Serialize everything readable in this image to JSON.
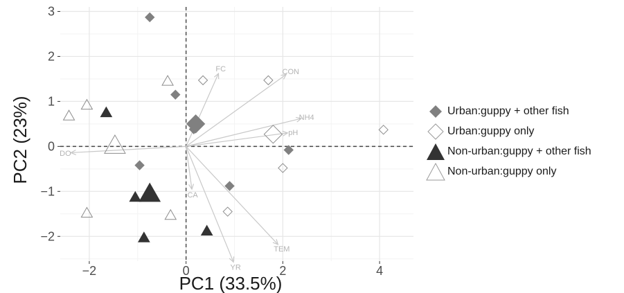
{
  "chart_data": {
    "type": "scatter",
    "xlabel": "PC1 (33.5%)",
    "ylabel": "PC2 (23%)",
    "xlim": [
      -2.6,
      4.7
    ],
    "ylim": [
      -2.55,
      3.1
    ],
    "x_ticks": [
      -2,
      0,
      2,
      4
    ],
    "y_ticks": [
      -2,
      -1,
      0,
      1,
      2,
      3
    ],
    "x_tick_labels": [
      "−2",
      "0",
      "2",
      "4"
    ],
    "y_tick_labels": [
      "−2",
      "−1",
      "0",
      "1",
      "2",
      "3"
    ],
    "grid": true,
    "reference_lines": {
      "x": 0,
      "y": 0,
      "style": "dashed"
    },
    "legend_position": "right",
    "series": [
      {
        "name": "Urban:guppy + other fish",
        "marker": "diamond-filled",
        "color": "#808080",
        "points": [
          {
            "x": -0.75,
            "y": 2.87
          },
          {
            "x": -0.22,
            "y": 1.15
          },
          {
            "x": 0.16,
            "y": 0.38
          },
          {
            "x": -0.96,
            "y": -0.42
          },
          {
            "x": 0.9,
            "y": -0.88
          },
          {
            "x": 2.12,
            "y": -0.08
          }
        ],
        "centroid": {
          "x": 0.2,
          "y": 0.5
        }
      },
      {
        "name": "Urban:guppy only",
        "marker": "diamond-open",
        "color": "#808080",
        "points": [
          {
            "x": 0.35,
            "y": 1.47
          },
          {
            "x": 1.7,
            "y": 1.47
          },
          {
            "x": 2.0,
            "y": -0.48
          },
          {
            "x": 0.86,
            "y": -1.45
          },
          {
            "x": 4.08,
            "y": 0.37
          }
        ],
        "centroid": {
          "x": 1.8,
          "y": 0.27
        }
      },
      {
        "name": "Non-urban:guppy + other fish",
        "marker": "triangle-filled",
        "color": "#333333",
        "points": [
          {
            "x": -1.65,
            "y": 0.75
          },
          {
            "x": -1.05,
            "y": -1.13
          },
          {
            "x": -0.87,
            "y": -2.03
          },
          {
            "x": 0.43,
            "y": -1.88
          }
        ],
        "centroid": {
          "x": -0.75,
          "y": -1.05
        }
      },
      {
        "name": "Non-urban:guppy only",
        "marker": "triangle-open",
        "color": "#808080",
        "points": [
          {
            "x": -2.42,
            "y": 0.68
          },
          {
            "x": -2.05,
            "y": 0.92
          },
          {
            "x": -0.38,
            "y": 1.45
          },
          {
            "x": -2.05,
            "y": -1.48
          },
          {
            "x": -0.32,
            "y": -1.53
          }
        ],
        "centroid": {
          "x": -1.47,
          "y": 0.02
        }
      }
    ],
    "vectors": [
      {
        "label": "FC",
        "x": 0.67,
        "y": 1.62
      },
      {
        "label": "CON",
        "x": 2.07,
        "y": 1.6
      },
      {
        "label": "NH4",
        "x": 2.38,
        "y": 0.62
      },
      {
        "label": "pH",
        "x": 2.1,
        "y": 0.3
      },
      {
        "label": "TEM",
        "x": 1.9,
        "y": -2.18
      },
      {
        "label": "YR",
        "x": 0.98,
        "y": -2.57
      },
      {
        "label": "CA",
        "x": 0.12,
        "y": -0.95
      },
      {
        "label": "DO",
        "x": -2.38,
        "y": -0.14
      }
    ]
  }
}
